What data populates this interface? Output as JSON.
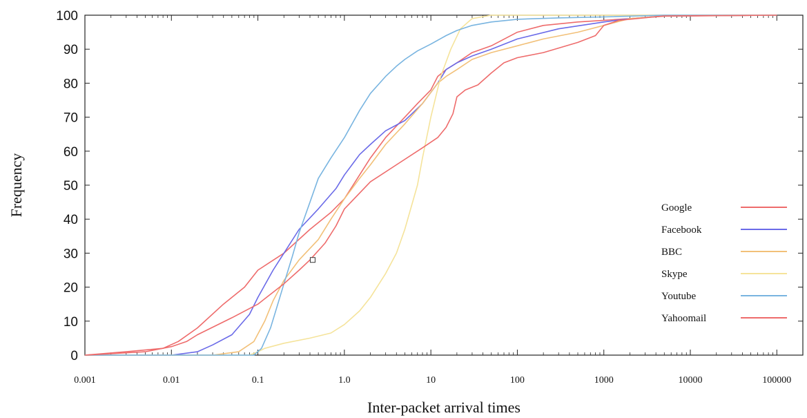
{
  "chart_data": {
    "type": "line",
    "title": "",
    "xlabel": "Inter-packet arrival times",
    "ylabel": "Frequency",
    "x_scale": "log",
    "xlim": [
      0.001,
      200000
    ],
    "ylim": [
      0,
      100
    ],
    "x_ticks": [
      {
        "value": 0.001,
        "label": "0.001"
      },
      {
        "value": 0.01,
        "label": "0.01"
      },
      {
        "value": 0.1,
        "label": "0.1"
      },
      {
        "value": 1,
        "label": "1.0"
      },
      {
        "value": 10,
        "label": "10"
      },
      {
        "value": 100,
        "label": "100"
      },
      {
        "value": 1000,
        "label": "1000"
      },
      {
        "value": 10000,
        "label": "10000"
      },
      {
        "value": 100000,
        "label": "100000"
      }
    ],
    "y_ticks": [
      0,
      10,
      20,
      30,
      40,
      50,
      60,
      70,
      80,
      90,
      100
    ],
    "grid": false,
    "legend_position": "bottom-right",
    "series": [
      {
        "name": "Google",
        "color": "#ee6b6b",
        "x": [
          0.001,
          0.003,
          0.008,
          0.012,
          0.02,
          0.04,
          0.07,
          0.1,
          0.2,
          0.4,
          0.7,
          1,
          1.5,
          2,
          3,
          5,
          7,
          10,
          12,
          15,
          20,
          30,
          50,
          100,
          200,
          500,
          1000,
          2000,
          5000,
          100000
        ],
        "y": [
          0,
          1,
          2,
          4,
          8,
          15,
          20,
          25,
          30,
          37,
          42,
          46,
          53,
          58,
          64,
          70,
          74,
          78,
          82,
          84,
          86,
          89,
          91,
          95,
          97,
          98,
          98.5,
          99,
          99.7,
          100
        ]
      },
      {
        "name": "Facebook",
        "color": "#6a6ae8",
        "x": [
          0.001,
          0.01,
          0.02,
          0.03,
          0.05,
          0.08,
          0.1,
          0.15,
          0.2,
          0.3,
          0.5,
          0.8,
          1,
          1.5,
          2,
          3,
          5,
          8,
          12,
          15,
          20,
          30,
          50,
          100,
          300,
          1000,
          2000,
          5000,
          100000
        ],
        "y": [
          0,
          0,
          1,
          3,
          6,
          12,
          17,
          25,
          30,
          37,
          43,
          49,
          53,
          59,
          62,
          66,
          69,
          74,
          80,
          84,
          86,
          88,
          90,
          93,
          96,
          98,
          99,
          99.8,
          100
        ]
      },
      {
        "name": "BBC",
        "color": "#f2c078",
        "x": [
          0.001,
          0.03,
          0.06,
          0.09,
          0.12,
          0.15,
          0.2,
          0.3,
          0.5,
          0.7,
          1,
          1.5,
          2,
          3,
          5,
          8,
          12,
          15,
          20,
          30,
          50,
          100,
          200,
          500,
          1000,
          2000,
          5000,
          100000
        ],
        "y": [
          0,
          0,
          1,
          4,
          10,
          16,
          22,
          28,
          34,
          40,
          46,
          52,
          56,
          62,
          68,
          74,
          80,
          82,
          84,
          87,
          89,
          91,
          93,
          95,
          97,
          99,
          99.8,
          100
        ]
      },
      {
        "name": "Skype",
        "color": "#f5e39a",
        "x": [
          0.001,
          0.08,
          0.1,
          0.12,
          0.2,
          0.4,
          0.7,
          1,
          1.5,
          2,
          3,
          4,
          5,
          7,
          8,
          10,
          13,
          17,
          22,
          30,
          50,
          100,
          100000
        ],
        "y": [
          0,
          0,
          1,
          2,
          3.5,
          5,
          6.5,
          9,
          13,
          17,
          24,
          30,
          37,
          50,
          58,
          70,
          82,
          90,
          96,
          99,
          100,
          100,
          100
        ]
      },
      {
        "name": "Youtube",
        "color": "#78b4e0",
        "x": [
          0.001,
          0.09,
          0.11,
          0.14,
          0.17,
          0.2,
          0.25,
          0.3,
          0.4,
          0.5,
          0.7,
          1,
          1.5,
          2,
          3,
          4,
          5,
          7,
          10,
          15,
          20,
          30,
          50,
          100,
          300,
          1000,
          5000,
          100000
        ],
        "y": [
          0,
          0,
          2,
          8,
          15,
          21,
          29,
          36,
          45,
          52,
          58,
          64,
          72,
          77,
          82,
          85,
          87,
          89.5,
          91.5,
          94,
          95.5,
          97,
          98,
          98.8,
          99.2,
          99.5,
          100,
          100
        ]
      },
      {
        "name": "Yahoomail",
        "color": "#ee6b6b",
        "x": [
          0.001,
          0.005,
          0.01,
          0.015,
          0.02,
          0.05,
          0.1,
          0.2,
          0.3,
          0.4,
          0.6,
          0.8,
          1,
          2,
          4,
          8,
          12,
          15,
          18,
          20,
          25,
          35,
          50,
          70,
          100,
          200,
          500,
          800,
          1000,
          1500,
          5000,
          100000
        ],
        "y": [
          0,
          1,
          2.5,
          4,
          6,
          11,
          15,
          21,
          25,
          28,
          33,
          38,
          43,
          51,
          56,
          61,
          64,
          67,
          71,
          76,
          78,
          79.5,
          83,
          86,
          87.5,
          89,
          92,
          94,
          97,
          98.5,
          99.8,
          100
        ]
      }
    ],
    "marker": {
      "x": 0.43,
      "y": 28
    }
  }
}
